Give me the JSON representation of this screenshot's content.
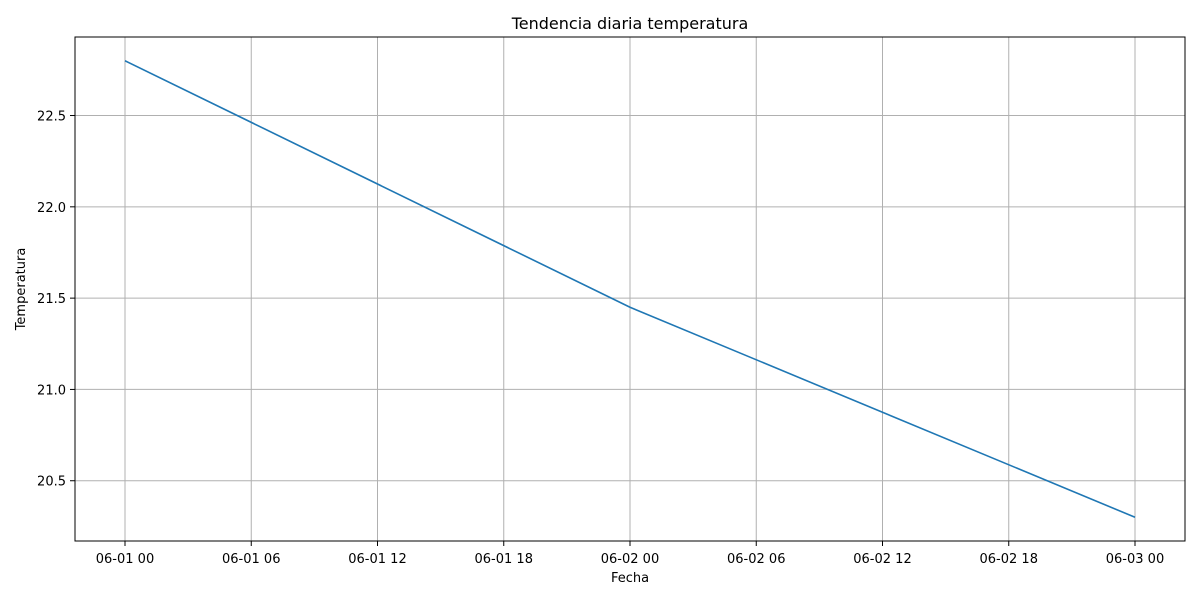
{
  "chart_data": {
    "type": "line",
    "title": "Tendencia diaria temperatura",
    "xlabel": "Fecha",
    "ylabel": "Temperatura",
    "x_ticks": [
      "06-01 00",
      "06-01 06",
      "06-01 12",
      "06-01 18",
      "06-02 00",
      "06-02 06",
      "06-02 12",
      "06-02 18",
      "06-03 00"
    ],
    "y_ticks": [
      "20.5",
      "21.0",
      "21.5",
      "22.0",
      "22.5"
    ],
    "x_range": [
      "2024-06-01 00:00",
      "2024-06-03 00:00"
    ],
    "ylim": [
      20.17,
      22.93
    ],
    "grid": true,
    "series": [
      {
        "color": "#1f77b4",
        "points": [
          {
            "x": "2024-06-01 00:00",
            "y": 22.8
          },
          {
            "x": "2024-06-02 00:00",
            "y": 21.45
          },
          {
            "x": "2024-06-03 00:00",
            "y": 20.3
          }
        ]
      }
    ]
  }
}
